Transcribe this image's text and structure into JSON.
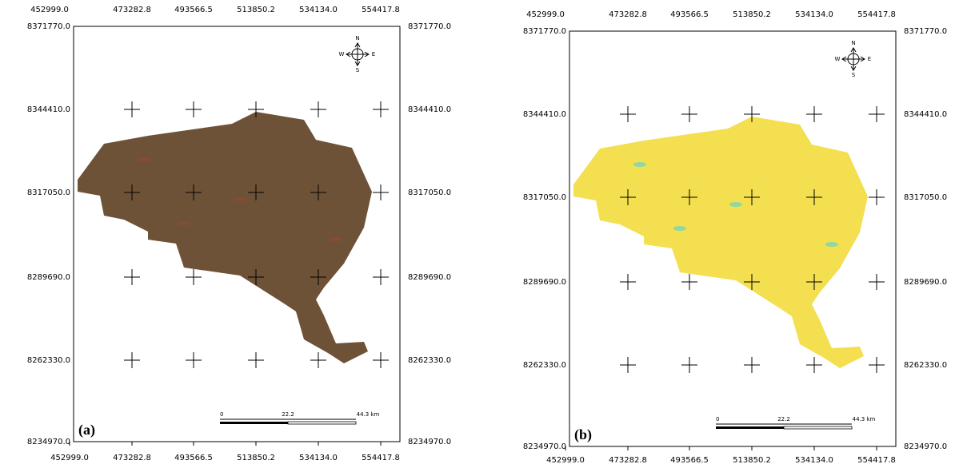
{
  "panels": [
    {
      "label": "(a)",
      "x_labels": [
        "452999.0",
        "473282.8",
        "493566.5",
        "513850.2",
        "534134.0",
        "554417.8"
      ],
      "y_labels": [
        "8371770.0",
        "8344410.0",
        "8317050.0",
        "8289690.0",
        "8262330.0",
        "8234970.0"
      ],
      "scale": [
        "0",
        "22.2",
        "44.3 km"
      ],
      "compass": {
        "n": "N",
        "s": "S",
        "w": "W",
        "e": "E"
      }
    },
    {
      "label": "(b)",
      "x_labels": [
        "452999.0",
        "473282.8",
        "493566.5",
        "513850.2",
        "534134.0",
        "554417.8"
      ],
      "y_labels": [
        "8371770.0",
        "8344410.0",
        "8317050.0",
        "8289690.0",
        "8262330.0",
        "8234970.0"
      ],
      "scale": [
        "0",
        "22.2",
        "44.3 km"
      ],
      "compass": {
        "n": "N",
        "s": "S",
        "w": "W",
        "e": "E"
      }
    }
  ]
}
